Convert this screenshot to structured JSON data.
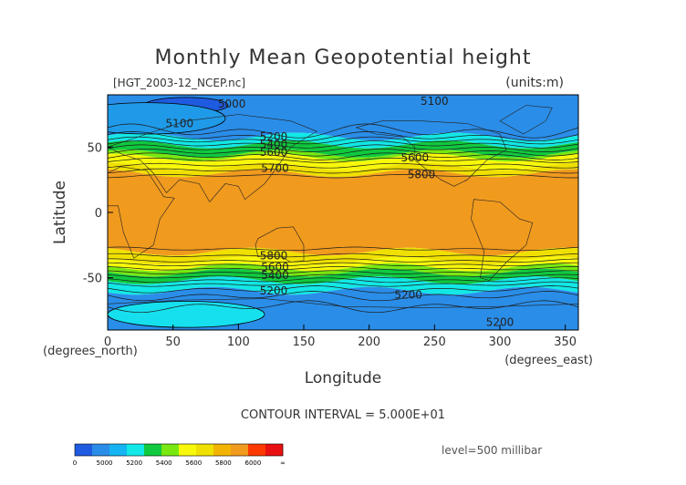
{
  "chart_data": {
    "type": "heatmap",
    "title": "Monthly Mean Geopotential height",
    "file_label": "[HGT_2003-12_NCEP.nc]",
    "units_label": "(units:m)",
    "xlabel": "Longitude",
    "ylabel": "Latitude",
    "x_unit_label": "(degrees_east)",
    "y_unit_label": "(degrees_north)",
    "xlim": [
      0,
      360
    ],
    "ylim": [
      -90,
      90
    ],
    "x_ticks": [
      0,
      50,
      100,
      150,
      200,
      250,
      300,
      350
    ],
    "y_ticks": [
      50,
      0,
      -50
    ],
    "contour_interval_text": "CONTOUR INTERVAL = 5.000E+01",
    "level_text": "level=500 millibar",
    "contour_interval": 50,
    "colorbar": {
      "bounds": [
        "0",
        "5000",
        "5200",
        "5400",
        "5600",
        "5800",
        "6000",
        "∞"
      ],
      "colors": [
        "#1f5be0",
        "#2a8de8",
        "#16b4f2",
        "#12e8e6",
        "#10c93e",
        "#78e810",
        "#f8f80a",
        "#f0e000",
        "#f2b400",
        "#f09a1e",
        "#ff3a00",
        "#e81010"
      ]
    },
    "bands": [
      {
        "lat_top": 90,
        "lat_bottom": 58,
        "color": "#2a8de8",
        "height_m": "5000-5100"
      },
      {
        "lat_top": 58,
        "lat_bottom": 52,
        "color": "#12e8e6",
        "height_m": "5200-5400"
      },
      {
        "lat_top": 52,
        "lat_bottom": 45,
        "color": "#10c93e",
        "height_m": "5400-5600"
      },
      {
        "lat_top": 45,
        "lat_bottom": 42,
        "color": "#78e810",
        "height_m": "5600"
      },
      {
        "lat_top": 42,
        "lat_bottom": 35,
        "color": "#f8f80a",
        "height_m": "5600-5800"
      },
      {
        "lat_top": 35,
        "lat_bottom": 30,
        "color": "#f0e000",
        "height_m": "5800"
      },
      {
        "lat_top": 30,
        "lat_bottom": -30,
        "color": "#f09a1e",
        "height_m": "5800-5900"
      },
      {
        "lat_top": -30,
        "lat_bottom": -37,
        "color": "#f0e000",
        "height_m": "5800"
      },
      {
        "lat_top": -37,
        "lat_bottom": -42,
        "color": "#f8f80a",
        "height_m": "5600-5800"
      },
      {
        "lat_top": -42,
        "lat_bottom": -46,
        "color": "#78e810",
        "height_m": "5600"
      },
      {
        "lat_top": -46,
        "lat_bottom": -52,
        "color": "#10c93e",
        "height_m": "5400-5600"
      },
      {
        "lat_top": -52,
        "lat_bottom": -60,
        "color": "#12e8e6",
        "height_m": "5200-5400"
      },
      {
        "lat_top": -60,
        "lat_bottom": -90,
        "color": "#2a8de8",
        "height_m": "5000-5200"
      }
    ],
    "blobs": [
      {
        "lon": 60,
        "lat": 82,
        "rlon": 32,
        "rlat": 6,
        "color": "#1f5be0",
        "note": "below 5000"
      },
      {
        "lon": 30,
        "lat": 72,
        "rlon": 60,
        "rlat": 12,
        "color": "#1f9ae8",
        "note": "5000-5100"
      },
      {
        "lon": 60,
        "lat": -78,
        "rlon": 60,
        "rlat": 10,
        "color": "#16e0ee",
        "note": "above 5200"
      }
    ],
    "contour_labels": [
      {
        "text": "5000",
        "lon": 95,
        "lat": 83
      },
      {
        "text": "5100",
        "lon": 55,
        "lat": 68
      },
      {
        "text": "5100",
        "lon": 250,
        "lat": 85
      },
      {
        "text": "5200",
        "lon": 127,
        "lat": 58
      },
      {
        "text": "5400",
        "lon": 127,
        "lat": 52
      },
      {
        "text": "5600",
        "lon": 127,
        "lat": 46
      },
      {
        "text": "5600",
        "lon": 235,
        "lat": 42
      },
      {
        "text": "5700",
        "lon": 128,
        "lat": 34
      },
      {
        "text": "5800",
        "lon": 240,
        "lat": 29
      },
      {
        "text": "5800",
        "lon": 127,
        "lat": -33
      },
      {
        "text": "5600",
        "lon": 128,
        "lat": -42
      },
      {
        "text": "5400",
        "lon": 128,
        "lat": -48
      },
      {
        "text": "5200",
        "lon": 127,
        "lat": -60
      },
      {
        "text": "5200",
        "lon": 230,
        "lat": -63
      },
      {
        "text": "5200",
        "lon": 300,
        "lat": -84
      }
    ],
    "contours": [
      {
        "lat": 62,
        "amp": 6,
        "phase": 0.5
      },
      {
        "lat": 58,
        "amp": 4,
        "phase": 0.4
      },
      {
        "lat": 55,
        "amp": 3,
        "phase": 0.2
      },
      {
        "lat": 52,
        "amp": 3,
        "phase": 0.1
      },
      {
        "lat": 49,
        "amp": 3,
        "phase": 0.0
      },
      {
        "lat": 46,
        "amp": 3,
        "phase": 6.0
      },
      {
        "lat": 43,
        "amp": 3,
        "phase": 5.8
      },
      {
        "lat": 40,
        "amp": 2,
        "phase": 5.6
      },
      {
        "lat": 36,
        "amp": 2,
        "phase": 5.4
      },
      {
        "lat": 32,
        "amp": 2,
        "phase": 5.2
      },
      {
        "lat": 28,
        "amp": 1.5,
        "phase": 5.0
      },
      {
        "lat": -28,
        "amp": 1.5,
        "phase": 1.0
      },
      {
        "lat": -33,
        "amp": 1.5,
        "phase": 1.2
      },
      {
        "lat": -37,
        "amp": 1.5,
        "phase": 1.4
      },
      {
        "lat": -40,
        "amp": 1.5,
        "phase": 1.6
      },
      {
        "lat": -43,
        "amp": 1.5,
        "phase": 1.8
      },
      {
        "lat": -46,
        "amp": 1.5,
        "phase": 2.0
      },
      {
        "lat": -49,
        "amp": 1.5,
        "phase": 2.2
      },
      {
        "lat": -52,
        "amp": 2,
        "phase": 2.4
      },
      {
        "lat": -55,
        "amp": 2,
        "phase": 2.6
      },
      {
        "lat": -59,
        "amp": 3,
        "phase": 2.8
      },
      {
        "lat": -64,
        "amp": 4,
        "phase": 3.0
      },
      {
        "lat": -72,
        "amp": 5,
        "phase": 3.2
      }
    ]
  }
}
